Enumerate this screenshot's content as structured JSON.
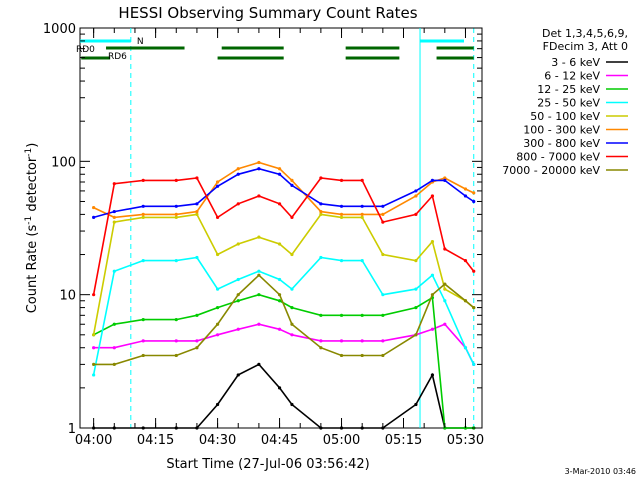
{
  "chart_data": {
    "type": "line",
    "title": "HESSI Observing Summary Count Rates",
    "xlabel": "Start Time (27-Jul-06 03:56:42)",
    "ylabel_main": "Count Rate (s",
    "ylabel_sup1": "-1",
    "ylabel_mid": " detector",
    "ylabel_sup2": "-1",
    "ylabel_end": ")",
    "footer": "3-Mar-2010 03:46",
    "y_scale": "log",
    "ylim": [
      1,
      1000
    ],
    "xlim": [
      "03:56:42",
      "05:34:00"
    ],
    "x_ticks": [
      "04:00",
      "04:15",
      "04:30",
      "04:45",
      "05:00",
      "05:15",
      "05:30"
    ],
    "y_ticks": [
      "1",
      "10",
      "100",
      "1000"
    ],
    "legend": {
      "header1": "Det 1,3,4,5,6,9,",
      "header2": "FDecim 3, Att 0",
      "position": "right"
    },
    "series": [
      {
        "name": "3 - 6 keV",
        "color": "#000000",
        "x": [
          "04:00",
          "04:05",
          "04:12",
          "04:20",
          "04:25",
          "04:30",
          "04:35",
          "04:40",
          "04:45",
          "04:48",
          "04:55",
          "05:00",
          "05:05",
          "05:10",
          "05:18",
          "05:22",
          "05:25",
          "05:30",
          "05:32"
        ],
        "values": [
          1,
          1,
          1,
          1,
          1,
          1.5,
          2.5,
          3,
          2,
          1.5,
          1,
          1,
          1,
          1,
          1.5,
          2.5,
          1,
          1,
          1
        ]
      },
      {
        "name": "6 - 12 keV",
        "color": "#ff00ff",
        "x": [
          "04:00",
          "04:05",
          "04:12",
          "04:20",
          "04:25",
          "04:30",
          "04:35",
          "04:40",
          "04:45",
          "04:48",
          "04:55",
          "05:00",
          "05:05",
          "05:10",
          "05:18",
          "05:22",
          "05:25",
          "05:30",
          "05:32"
        ],
        "values": [
          4,
          4,
          4.5,
          4.5,
          4.5,
          5,
          5.5,
          6,
          5.5,
          5,
          4.5,
          4.5,
          4.5,
          4.5,
          5,
          5.5,
          6,
          4,
          3
        ]
      },
      {
        "name": "12 - 25 keV",
        "color": "#00cc00",
        "x": [
          "04:00",
          "04:05",
          "04:12",
          "04:20",
          "04:25",
          "04:30",
          "04:35",
          "04:40",
          "04:45",
          "04:48",
          "04:55",
          "05:00",
          "05:05",
          "05:10",
          "05:18",
          "05:22",
          "05:25",
          "05:30",
          "05:32"
        ],
        "values": [
          5,
          6,
          6.5,
          6.5,
          7,
          8,
          9,
          10,
          9,
          8,
          7,
          7,
          7,
          7,
          8,
          9.5,
          1,
          1,
          1
        ]
      },
      {
        "name": "25 - 50 keV",
        "color": "#00ffff",
        "x": [
          "04:00",
          "04:05",
          "04:12",
          "04:20",
          "04:25",
          "04:30",
          "04:35",
          "04:40",
          "04:45",
          "04:48",
          "04:55",
          "05:00",
          "05:05",
          "05:10",
          "05:18",
          "05:22",
          "05:25",
          "05:30",
          "05:32"
        ],
        "values": [
          2.5,
          15,
          18,
          18,
          19,
          11,
          13,
          15,
          13,
          11,
          19,
          18,
          18,
          10,
          11,
          14,
          9,
          4,
          3
        ]
      },
      {
        "name": "50 - 100 keV",
        "color": "#cccc00",
        "x": [
          "04:00",
          "04:05",
          "04:12",
          "04:20",
          "04:25",
          "04:30",
          "04:35",
          "04:40",
          "04:45",
          "04:48",
          "04:55",
          "05:00",
          "05:05",
          "05:10",
          "05:18",
          "05:22",
          "05:25",
          "05:30",
          "05:32"
        ],
        "values": [
          5,
          35,
          38,
          38,
          40,
          20,
          24,
          27,
          24,
          20,
          40,
          38,
          38,
          20,
          18,
          25,
          11,
          9,
          8
        ]
      },
      {
        "name": "100 - 300 keV",
        "color": "#ff8800",
        "x": [
          "04:00",
          "04:05",
          "04:12",
          "04:20",
          "04:25",
          "04:30",
          "04:35",
          "04:40",
          "04:45",
          "04:48",
          "04:55",
          "05:00",
          "05:05",
          "05:10",
          "05:18",
          "05:22",
          "05:25",
          "05:30",
          "05:32"
        ],
        "values": [
          45,
          38,
          40,
          40,
          42,
          70,
          88,
          98,
          88,
          72,
          42,
          40,
          40,
          40,
          55,
          70,
          75,
          62,
          58
        ]
      },
      {
        "name": "300 - 800 keV",
        "color": "#0000ff",
        "x": [
          "04:00",
          "04:05",
          "04:12",
          "04:20",
          "04:25",
          "04:30",
          "04:35",
          "04:40",
          "04:45",
          "04:48",
          "04:55",
          "05:00",
          "05:05",
          "05:10",
          "05:18",
          "05:22",
          "05:25",
          "05:30",
          "05:32"
        ],
        "values": [
          38,
          42,
          46,
          46,
          48,
          65,
          80,
          88,
          80,
          66,
          48,
          46,
          46,
          46,
          60,
          72,
          72,
          55,
          50
        ]
      },
      {
        "name": "800 - 7000 keV",
        "color": "#ff0000",
        "x": [
          "04:00",
          "04:05",
          "04:12",
          "04:20",
          "04:25",
          "04:30",
          "04:35",
          "04:40",
          "04:45",
          "04:48",
          "04:55",
          "05:00",
          "05:05",
          "05:10",
          "05:18",
          "05:22",
          "05:25",
          "05:30",
          "05:32"
        ],
        "values": [
          10,
          68,
          72,
          72,
          75,
          38,
          48,
          55,
          48,
          38,
          75,
          72,
          72,
          35,
          40,
          55,
          22,
          18,
          15
        ]
      },
      {
        "name": "7000 - 20000 keV",
        "color": "#888800",
        "x": [
          "04:00",
          "04:05",
          "04:12",
          "04:20",
          "04:25",
          "04:30",
          "04:35",
          "04:40",
          "04:45",
          "04:48",
          "04:55",
          "05:00",
          "05:05",
          "05:10",
          "05:18",
          "05:22",
          "05:25",
          "05:30",
          "05:32"
        ],
        "values": [
          3,
          3,
          3.5,
          3.5,
          4,
          6,
          10,
          14,
          10,
          6,
          4,
          3.5,
          3.5,
          3.5,
          5,
          10,
          12,
          9,
          8
        ]
      }
    ],
    "annotations": {
      "n_label": "N",
      "rd0_label": "RD0",
      "rd6_label": "RD6"
    }
  }
}
